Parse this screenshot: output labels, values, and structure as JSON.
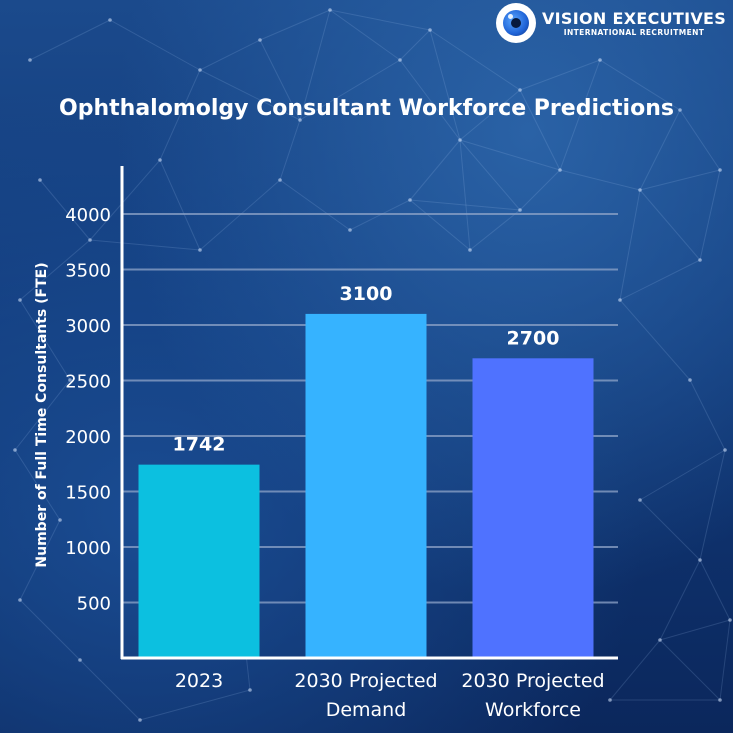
{
  "brand": {
    "name": "VISION EXECUTIVES",
    "tagline": "INTERNATIONAL RECRUITMENT",
    "logo_icon": "eye-icon"
  },
  "chart_data": {
    "type": "bar",
    "title": "Ophthalomolgy Consultant Workforce Predictions",
    "ylabel": "Number of Full Time Consultants (FTE)",
    "xlabel": "",
    "categories": [
      [
        "2023"
      ],
      [
        "2030 Projected",
        "Demand"
      ],
      [
        "2030 Projected",
        "Workforce"
      ]
    ],
    "values": [
      1742,
      3100,
      2700
    ],
    "data_labels": [
      "1742",
      "3100",
      "2700"
    ],
    "yticks": [
      500,
      1000,
      1500,
      2000,
      2500,
      3000,
      3500,
      4000
    ],
    "ylim": [
      0,
      4500
    ],
    "grid": true,
    "legend": "none",
    "colors": [
      "#0cc0e0",
      "#36b3ff",
      "#4f72ff"
    ],
    "grid_color": "#8fa4c8",
    "axis_color": "#ffffff",
    "text_color": "#ffffff"
  }
}
